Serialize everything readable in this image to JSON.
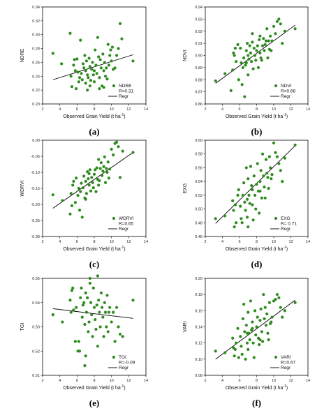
{
  "chart_data": [
    {
      "type": "scatter",
      "panel_label": "(a)",
      "ylabel": "NDRE",
      "xlabel": "Observed Grain Yield (t ha",
      "xlabel_sup": "-1",
      "xlabel_close": ")",
      "xlim": [
        2,
        14
      ],
      "ylim": [
        0.2,
        0.34
      ],
      "xticks": [
        "2",
        "4",
        "6",
        "8",
        "10",
        "12",
        "14"
      ],
      "yticks": [
        "0.20",
        "0.22",
        "0.24",
        "0.26",
        "0.28",
        "0.30",
        "0.32",
        "0.34"
      ],
      "legend": {
        "series": "NDRE",
        "stat": "R=0.31",
        "line": "Regr"
      },
      "regression": {
        "x": [
          3.2,
          12.5
        ],
        "y": [
          0.235,
          0.271
        ]
      },
      "x": [
        3.2,
        4.2,
        5.2,
        5.3,
        5.4,
        5.6,
        5.8,
        5.9,
        6.0,
        6.1,
        6.2,
        6.3,
        6.5,
        6.6,
        6.7,
        6.8,
        6.9,
        7.0,
        7.0,
        7.1,
        7.2,
        7.3,
        7.4,
        7.5,
        7.5,
        7.6,
        7.7,
        7.8,
        7.9,
        8.0,
        8.0,
        8.1,
        8.2,
        8.3,
        8.4,
        8.5,
        8.6,
        8.7,
        8.8,
        8.9,
        9.0,
        9.1,
        9.2,
        9.3,
        9.4,
        9.5,
        9.6,
        9.7,
        9.8,
        9.9,
        10.0,
        10.1,
        10.2,
        10.4,
        10.6,
        10.8,
        11.0,
        11.2,
        12.5,
        6.4,
        7.2,
        8.6,
        9.1,
        5.7
      ],
      "y": [
        0.273,
        0.258,
        0.302,
        0.24,
        0.225,
        0.256,
        0.248,
        0.222,
        0.265,
        0.246,
        0.232,
        0.238,
        0.244,
        0.235,
        0.258,
        0.252,
        0.27,
        0.248,
        0.23,
        0.262,
        0.242,
        0.238,
        0.266,
        0.254,
        0.226,
        0.234,
        0.25,
        0.26,
        0.242,
        0.248,
        0.232,
        0.278,
        0.256,
        0.244,
        0.296,
        0.268,
        0.238,
        0.264,
        0.252,
        0.226,
        0.272,
        0.248,
        0.26,
        0.24,
        0.252,
        0.236,
        0.286,
        0.256,
        0.27,
        0.278,
        0.262,
        0.282,
        0.25,
        0.252,
        0.27,
        0.28,
        0.316,
        0.294,
        0.262,
        0.292,
        0.22,
        0.222,
        0.224,
        0.264
      ]
    },
    {
      "type": "scatter",
      "panel_label": "(b)",
      "ylabel": "NDVI",
      "xlabel": "Observed Grain Yield (t ha",
      "xlabel_sup": "-1",
      "xlabel_close": ")",
      "xlim": [
        2,
        14
      ],
      "ylim": [
        0.86,
        0.94
      ],
      "xticks": [
        "2",
        "4",
        "6",
        "8",
        "10",
        "12",
        "14"
      ],
      "yticks": [
        "0.86",
        "0.87",
        "0.88",
        "0.89",
        "0.90",
        "0.91",
        "0.92",
        "0.93",
        "0.94"
      ],
      "legend": {
        "series": "NDVI",
        "stat": "R=0.68",
        "line": "Regr"
      },
      "regression": {
        "x": [
          3.2,
          12.5
        ],
        "y": [
          0.877,
          0.925
        ]
      },
      "x": [
        3.2,
        4.3,
        5.0,
        5.2,
        5.3,
        5.4,
        5.6,
        5.8,
        5.9,
        6.1,
        6.2,
        6.4,
        6.5,
        6.6,
        6.7,
        6.8,
        6.9,
        7.0,
        7.0,
        7.1,
        7.2,
        7.3,
        7.4,
        7.5,
        7.6,
        7.7,
        7.8,
        7.9,
        8.0,
        8.1,
        8.2,
        8.3,
        8.4,
        8.5,
        8.6,
        8.7,
        8.8,
        8.9,
        9.0,
        9.1,
        9.2,
        9.3,
        9.4,
        9.5,
        9.6,
        9.8,
        10.0,
        10.2,
        10.4,
        10.6,
        10.8,
        11.0,
        11.3,
        12.5,
        6.3,
        7.5,
        8.4,
        5.5,
        6.8,
        9.7
      ],
      "y": [
        0.879,
        0.885,
        0.871,
        0.888,
        0.902,
        0.9,
        0.895,
        0.909,
        0.88,
        0.906,
        0.894,
        0.89,
        0.898,
        0.866,
        0.892,
        0.904,
        0.91,
        0.9,
        0.884,
        0.897,
        0.908,
        0.902,
        0.895,
        0.911,
        0.889,
        0.906,
        0.9,
        0.896,
        0.904,
        0.908,
        0.89,
        0.913,
        0.902,
        0.898,
        0.896,
        0.908,
        0.914,
        0.904,
        0.909,
        0.912,
        0.922,
        0.898,
        0.912,
        0.905,
        0.916,
        0.912,
        0.924,
        0.918,
        0.928,
        0.93,
        0.926,
        0.91,
        0.92,
        0.922,
        0.876,
        0.918,
        0.916,
        0.906,
        0.894,
        0.904
      ]
    },
    {
      "type": "scatter",
      "panel_label": "(c)",
      "ylabel": "WDRVI",
      "xlabel": "Observed Grain Yield (t ha",
      "xlabel_sup": "-1",
      "xlabel_close": ")",
      "xlim": [
        2,
        14
      ],
      "ylim": [
        -0.3,
        0.0
      ],
      "xticks": [
        "2",
        "4",
        "6",
        "8",
        "10",
        "12",
        "14"
      ],
      "yticks": [
        "-0.30",
        "-0.25",
        "-0.20",
        "-0.15",
        "-0.10",
        "-0.05",
        "0.00"
      ],
      "legend": {
        "series": "WDRVI",
        "stat": "R=0.65",
        "line": "Regr"
      },
      "regression": {
        "x": [
          3.2,
          12.5
        ],
        "y": [
          -0.212,
          -0.038
        ]
      },
      "x": [
        3.2,
        4.3,
        5.2,
        5.3,
        5.5,
        5.6,
        5.8,
        5.9,
        6.1,
        6.2,
        6.4,
        6.5,
        6.6,
        6.7,
        6.8,
        6.9,
        7.0,
        7.0,
        7.1,
        7.2,
        7.3,
        7.4,
        7.5,
        7.6,
        7.7,
        7.8,
        7.9,
        8.0,
        8.1,
        8.2,
        8.3,
        8.4,
        8.5,
        8.6,
        8.7,
        8.8,
        8.9,
        9.0,
        9.1,
        9.2,
        9.3,
        9.4,
        9.5,
        9.6,
        9.8,
        10.0,
        10.2,
        10.4,
        10.6,
        10.8,
        11.0,
        11.3,
        12.5,
        6.3,
        7.4,
        8.5,
        5.4,
        9.7
      ],
      "y": [
        -0.17,
        -0.188,
        -0.23,
        -0.166,
        -0.14,
        -0.128,
        -0.194,
        -0.118,
        -0.172,
        -0.15,
        -0.16,
        -0.134,
        -0.24,
        -0.148,
        -0.112,
        -0.18,
        -0.128,
        -0.184,
        -0.166,
        -0.098,
        -0.12,
        -0.14,
        -0.092,
        -0.158,
        -0.116,
        -0.132,
        -0.148,
        -0.106,
        -0.092,
        -0.16,
        -0.086,
        -0.122,
        -0.14,
        -0.126,
        -0.088,
        -0.07,
        -0.11,
        -0.096,
        -0.082,
        -0.052,
        -0.132,
        -0.088,
        -0.1,
        -0.068,
        -0.09,
        -0.028,
        -0.046,
        -0.01,
        -0.006,
        -0.02,
        -0.116,
        -0.034,
        -0.038,
        -0.218,
        -0.104,
        -0.06,
        -0.204,
        -0.118
      ]
    },
    {
      "type": "scatter",
      "panel_label": "(d)",
      "ylabel": "EXG",
      "xlabel": "Observed Grain Yield (t ha",
      "xlabel_sup": "-1",
      "xlabel_close": ")",
      "xlim": [
        2,
        14
      ],
      "ylim": [
        0.46,
        0.6
      ],
      "xticks": [
        "2",
        "4",
        "6",
        "8",
        "10",
        "12",
        "14"
      ],
      "yticks": [
        "0.46",
        "0.48",
        "0.50",
        "0.52",
        "0.54",
        "0.56",
        "0.58",
        "0.60"
      ],
      "legend": {
        "series": "EXG",
        "stat": "R= 0.71",
        "line": "Regr"
      },
      "regression": {
        "x": [
          3.2,
          12.5
        ],
        "y": [
          0.479,
          0.592
        ]
      },
      "x": [
        3.2,
        4.3,
        5.2,
        5.3,
        5.4,
        5.6,
        5.8,
        5.9,
        6.1,
        6.2,
        6.4,
        6.5,
        6.6,
        6.7,
        6.8,
        6.9,
        7.0,
        7.0,
        7.1,
        7.2,
        7.3,
        7.4,
        7.5,
        7.6,
        7.7,
        7.8,
        7.9,
        8.0,
        8.1,
        8.2,
        8.3,
        8.4,
        8.5,
        8.6,
        8.7,
        8.8,
        8.9,
        9.0,
        9.1,
        9.2,
        9.3,
        9.4,
        9.5,
        9.6,
        9.8,
        10.0,
        10.2,
        10.4,
        10.6,
        10.8,
        11.0,
        11.3,
        12.5,
        6.3,
        7.5,
        8.4,
        5.5,
        9.7,
        6.9
      ],
      "y": [
        0.486,
        0.49,
        0.512,
        0.498,
        0.474,
        0.48,
        0.52,
        0.528,
        0.504,
        0.486,
        0.52,
        0.538,
        0.51,
        0.498,
        0.56,
        0.514,
        0.544,
        0.474,
        0.52,
        0.508,
        0.562,
        0.534,
        0.528,
        0.484,
        0.548,
        0.52,
        0.5,
        0.536,
        0.566,
        0.526,
        0.494,
        0.54,
        0.556,
        0.516,
        0.58,
        0.548,
        0.532,
        0.516,
        0.572,
        0.552,
        0.546,
        0.53,
        0.576,
        0.56,
        0.55,
        0.596,
        0.582,
        0.576,
        0.566,
        0.556,
        0.54,
        0.574,
        0.593,
        0.48,
        0.506,
        0.526,
        0.506,
        0.544,
        0.488
      ]
    },
    {
      "type": "scatter",
      "panel_label": "(e)",
      "ylabel": "TGI",
      "xlabel": "Observed Grain Yield (t ha",
      "xlabel_sup": "-1",
      "xlabel_close": ")",
      "xlim": [
        2,
        14
      ],
      "ylim": [
        0.51,
        0.55
      ],
      "xticks": [
        "2",
        "4",
        "6",
        "8",
        "10",
        "12",
        "14"
      ],
      "yticks": [
        "0.51",
        "0.52",
        "0.53",
        "0.54",
        "0.55"
      ],
      "legend": {
        "series": "TGI",
        "stat": "R=-0.09",
        "line": "Regr"
      },
      "regression": {
        "x": [
          3.2,
          12.5
        ],
        "y": [
          0.5375,
          0.5335
        ]
      },
      "x": [
        3.2,
        4.3,
        5.2,
        5.3,
        5.4,
        5.6,
        5.8,
        5.9,
        6.1,
        6.2,
        6.4,
        6.5,
        6.6,
        6.7,
        6.8,
        6.9,
        7.0,
        7.0,
        7.1,
        7.2,
        7.3,
        7.4,
        7.5,
        7.6,
        7.7,
        7.8,
        7.9,
        8.0,
        8.1,
        8.2,
        8.3,
        8.4,
        8.5,
        8.6,
        8.7,
        8.8,
        8.9,
        9.0,
        9.1,
        9.2,
        9.3,
        9.4,
        9.5,
        9.6,
        9.8,
        10.0,
        10.2,
        10.4,
        10.6,
        10.8,
        11.0,
        11.3,
        12.5,
        6.3,
        7.5,
        8.4,
        5.5,
        9.7,
        6.9,
        7.2
      ],
      "y": [
        0.535,
        0.532,
        0.541,
        0.536,
        0.545,
        0.537,
        0.524,
        0.538,
        0.52,
        0.524,
        0.542,
        0.546,
        0.534,
        0.539,
        0.54,
        0.531,
        0.518,
        0.544,
        0.536,
        0.542,
        0.528,
        0.532,
        0.548,
        0.54,
        0.535,
        0.526,
        0.546,
        0.538,
        0.533,
        0.529,
        0.539,
        0.522,
        0.541,
        0.536,
        0.53,
        0.544,
        0.538,
        0.534,
        0.526,
        0.54,
        0.536,
        0.53,
        0.543,
        0.528,
        0.538,
        0.532,
        0.536,
        0.524,
        0.538,
        0.53,
        0.527,
        0.526,
        0.541,
        0.52,
        0.55,
        0.551,
        0.546,
        0.536,
        0.514,
        0.542
      ]
    },
    {
      "type": "scatter",
      "panel_label": "(f)",
      "ylabel": "VARI",
      "xlabel": "Observed Grain Yield (t ha",
      "xlabel_sup": "-1",
      "xlabel_close": ")",
      "xlim": [
        2,
        14
      ],
      "ylim": [
        0.08,
        0.2
      ],
      "xticks": [
        "2",
        "4",
        "6",
        "8",
        "10",
        "12",
        "14"
      ],
      "yticks": [
        "0.08",
        "0.10",
        "0.12",
        "0.14",
        "0.16",
        "0.18",
        "0.20"
      ],
      "legend": {
        "series": "VARI",
        "stat": "R=0.67",
        "line": "Regr"
      },
      "regression": {
        "x": [
          3.2,
          12.5
        ],
        "y": [
          0.1,
          0.173
        ]
      },
      "x": [
        3.2,
        4.3,
        5.2,
        5.3,
        5.4,
        5.6,
        5.8,
        5.9,
        6.1,
        6.2,
        6.4,
        6.5,
        6.6,
        6.7,
        6.8,
        6.9,
        7.0,
        7.0,
        7.1,
        7.2,
        7.3,
        7.4,
        7.5,
        7.6,
        7.7,
        7.8,
        7.9,
        8.0,
        8.1,
        8.2,
        8.3,
        8.4,
        8.5,
        8.6,
        8.7,
        8.8,
        8.9,
        9.0,
        9.1,
        9.2,
        9.3,
        9.4,
        9.5,
        9.6,
        9.8,
        10.0,
        10.2,
        10.4,
        10.6,
        10.8,
        11.0,
        11.3,
        12.5,
        6.3,
        7.5,
        8.4,
        5.5,
        9.7,
        6.9
      ],
      "y": [
        0.11,
        0.108,
        0.126,
        0.114,
        0.104,
        0.12,
        0.138,
        0.102,
        0.128,
        0.116,
        0.15,
        0.168,
        0.134,
        0.1,
        0.142,
        0.12,
        0.112,
        0.158,
        0.132,
        0.124,
        0.172,
        0.136,
        0.146,
        0.12,
        0.102,
        0.16,
        0.13,
        0.14,
        0.152,
        0.126,
        0.118,
        0.148,
        0.162,
        0.134,
        0.122,
        0.18,
        0.15,
        0.164,
        0.142,
        0.156,
        0.132,
        0.124,
        0.17,
        0.144,
        0.152,
        0.172,
        0.174,
        0.18,
        0.176,
        0.164,
        0.152,
        0.16,
        0.17,
        0.106,
        0.138,
        0.124,
        0.112,
        0.146,
        0.132
      ]
    }
  ]
}
